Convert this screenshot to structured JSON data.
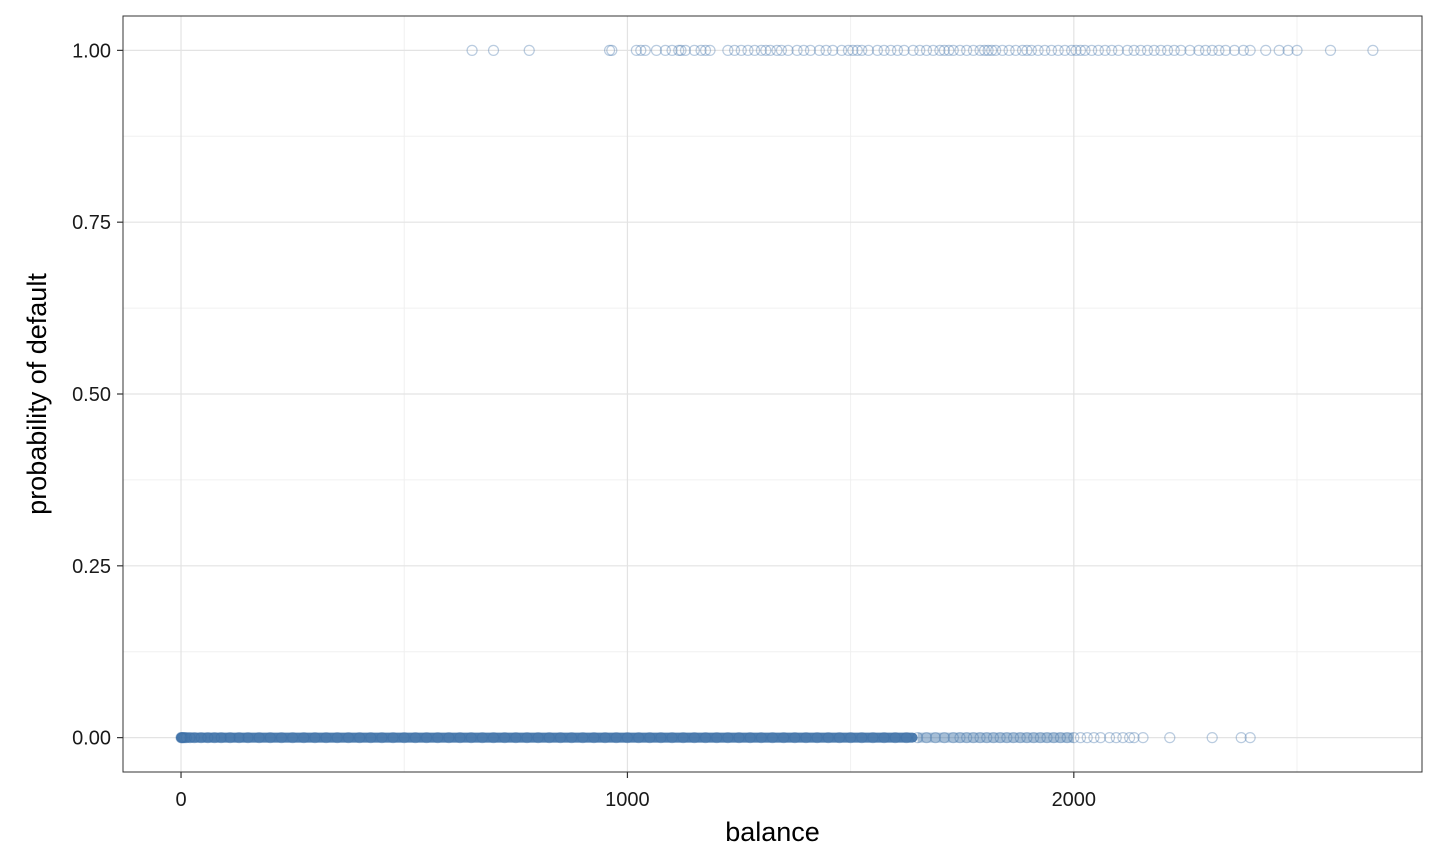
{
  "chart_data": {
    "type": "scatter",
    "title": "",
    "xlabel": "balance",
    "ylabel": "probability of default",
    "xlim": [
      -130,
      2780
    ],
    "ylim": [
      -0.05,
      1.05
    ],
    "x_ticks": [
      0,
      1000,
      2000
    ],
    "x_tick_labels": [
      "0",
      "1000",
      "2000"
    ],
    "y_ticks": [
      0,
      0.25,
      0.5,
      0.75,
      1
    ],
    "y_tick_labels": [
      "0.00",
      "0.25",
      "0.50",
      "0.75",
      "1.00"
    ],
    "grid": true,
    "point_color": "#3a6ea5",
    "series": [
      {
        "y": 1,
        "x": [
          652,
          700,
          780,
          960,
          965,
          1020,
          1030,
          1040,
          1065,
          1085,
          1100,
          1115,
          1120,
          1130,
          1150,
          1165,
          1175,
          1185,
          1225,
          1240,
          1255,
          1270,
          1285,
          1300,
          1310,
          1320,
          1335,
          1345,
          1360,
          1380,
          1395,
          1410,
          1430,
          1445,
          1460,
          1480,
          1495,
          1505,
          1515,
          1525,
          1540,
          1560,
          1575,
          1590,
          1605,
          1620,
          1640,
          1655,
          1670,
          1685,
          1700,
          1710,
          1720,
          1730,
          1745,
          1760,
          1775,
          1790,
          1800,
          1808,
          1816,
          1825,
          1840,
          1855,
          1870,
          1885,
          1895,
          1905,
          1920,
          1935,
          1950,
          1965,
          1980,
          1995,
          2005,
          2015,
          2025,
          2040,
          2055,
          2070,
          2085,
          2100,
          2120,
          2135,
          2150,
          2165,
          2180,
          2195,
          2210,
          2225,
          2240,
          2260,
          2280,
          2295,
          2310,
          2325,
          2340,
          2360,
          2380,
          2395,
          2430,
          2460,
          2480,
          2500,
          2575,
          2670
        ]
      },
      {
        "y": 0,
        "x": [
          0,
          1,
          3,
          5,
          8,
          12,
          20,
          30,
          45,
          60,
          75,
          90,
          110,
          130,
          150,
          175,
          200,
          225,
          250,
          275,
          300,
          325,
          350,
          375,
          400,
          425,
          450,
          475,
          500,
          525,
          550,
          575,
          600,
          625,
          650,
          675,
          700,
          725,
          750,
          775,
          800,
          825,
          850,
          875,
          900,
          925,
          950,
          975,
          1000,
          1025,
          1050,
          1075,
          1100,
          1125,
          1150,
          1175,
          1200,
          1225,
          1250,
          1275,
          1300,
          1325,
          1350,
          1375,
          1400,
          1425,
          1450,
          1475,
          1500,
          1525,
          1550,
          1575,
          1600,
          1625,
          1650,
          1670,
          1690,
          1710,
          1730,
          1745,
          1760,
          1775,
          1790,
          1805,
          1820,
          1835,
          1850,
          1865,
          1880,
          1895,
          1910,
          1925,
          1940,
          1955,
          1970,
          1985,
          2000,
          2015,
          2030,
          2045,
          2060,
          2080,
          2095,
          2110,
          2125,
          2135,
          2155,
          2215,
          2310,
          2375,
          2395
        ]
      }
    ]
  }
}
